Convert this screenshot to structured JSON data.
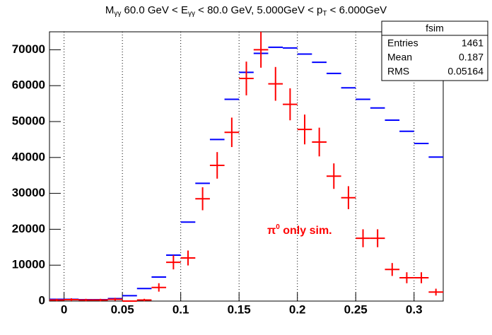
{
  "chart_data": {
    "type": "histogram",
    "title_parts": [
      "M",
      "γγ",
      " 60.0 GeV < E",
      "γγ",
      " < 80.0 GeV, 5.000GeV < p",
      "T",
      " < 6.000GeV"
    ],
    "annotation_parts": [
      "π",
      "0",
      " only sim."
    ],
    "bins": [
      -0.0125,
      0,
      0.0125,
      0.025,
      0.0375,
      0.05,
      0.0625,
      0.075,
      0.0875,
      0.1,
      0.1125,
      0.125,
      0.1375,
      0.15,
      0.1625,
      0.175,
      0.1875,
      0.2,
      0.2125,
      0.225,
      0.2375,
      0.25,
      0.2625,
      0.275,
      0.2875,
      0.3,
      0.3125,
      0.325
    ],
    "series": [
      {
        "color": "#0000ff",
        "values": [
          500,
          500,
          400,
          400,
          700,
          1500,
          3500,
          6700,
          12800,
          22000,
          32800,
          45000,
          56200,
          63700,
          69000,
          70700,
          70500,
          68800,
          66500,
          63400,
          59400,
          56200,
          53800,
          50400,
          47300,
          43900,
          40100
        ]
      },
      {
        "color": "#ff0000",
        "values": [
          300,
          400,
          300,
          300,
          500,
          0,
          300,
          3800,
          10800,
          12000,
          28500,
          37800,
          47000,
          62000,
          70000,
          60500,
          54800,
          47800,
          44300,
          34800,
          28800,
          17500,
          17500,
          8800,
          6500,
          6500,
          2500
        ],
        "errors": [
          330,
          380,
          330,
          330,
          420,
          0,
          330,
          1170,
          1970,
          2080,
          3200,
          3700,
          4100,
          4700,
          5000,
          4700,
          4450,
          4150,
          4000,
          3550,
          3200,
          2500,
          2500,
          1800,
          1530,
          1530,
          950
        ]
      }
    ],
    "xlim": [
      -0.0125,
      0.325
    ],
    "ylim": [
      0,
      75000
    ],
    "xticks": [
      0,
      0.05,
      0.1,
      0.15,
      0.2,
      0.25,
      0.3
    ],
    "yticks": [
      0,
      10000,
      20000,
      30000,
      40000,
      50000,
      60000,
      70000
    ],
    "grid": "x",
    "stats": {
      "name": "fsim",
      "rows": [
        [
          "Entries",
          "1461"
        ],
        [
          "Mean",
          "0.187"
        ],
        [
          "RMS",
          "0.05164"
        ]
      ]
    }
  }
}
